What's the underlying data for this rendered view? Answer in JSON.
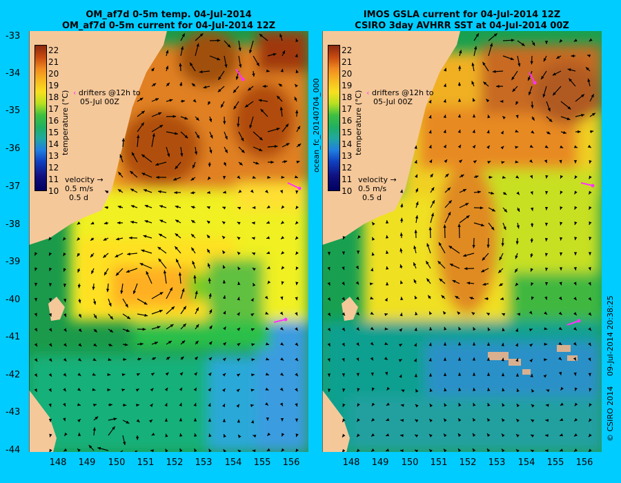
{
  "left_panel": {
    "title_line1": "OM_af7d 0-5m temp. 04-Jul-2014",
    "title_line2": "OM_af7d 0-5m current for 04-Jul-2014 12Z"
  },
  "right_panel": {
    "title_line1": "IMOS GSLA current for 04-Jul-2014 12Z",
    "title_line2": "CSIRO 3day AVHRR SST at 04-Jul-2014 00Z"
  },
  "colorbar": {
    "title": "temperature (°C)",
    "labels": [
      "22",
      "21",
      "20",
      "19",
      "18",
      "17",
      "16",
      "15",
      "14",
      "13",
      "12",
      "11",
      "10"
    ]
  },
  "drifters_label_1": "drifters @12h to",
  "drifters_label_2": "05-Jul 00Z",
  "velocity_label": "velocity",
  "velocity_speed": "0.5 m/s",
  "velocity_days": "0.5 d",
  "forecast_id": "ocean_fc_20140704_000",
  "credit": "© CSIRO 2014",
  "timestamp": "09-Jul-2014 20:38:25",
  "y_ticks": [
    "-33",
    "-34",
    "-35",
    "-36",
    "-37",
    "-38",
    "-39",
    "-40",
    "-41",
    "-42",
    "-43",
    "-44"
  ],
  "x_ticks": [
    "148",
    "149",
    "150",
    "151",
    "152",
    "153",
    "154",
    "155",
    "156"
  ],
  "colors": {
    "background": "#00ccff",
    "land": "#f5c89a",
    "drifter": "#ff33ff",
    "vector": "#000000"
  }
}
